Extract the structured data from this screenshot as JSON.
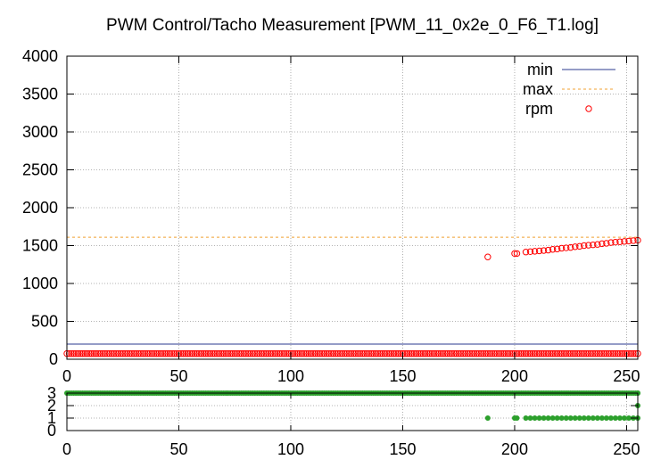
{
  "title": "PWM Control/Tacho Measurement [PWM_11_0x2e_0_F6_T1.log]",
  "colors": {
    "min": "#2b3a8f",
    "max": "#f0a030",
    "rpm": "#ff0000",
    "state": "#2ca02c",
    "grid": "#9a9a9a"
  },
  "chart_data": [
    {
      "type": "scatter",
      "title": "PWM Control/Tacho Measurement [PWM_11_0x2e_0_F6_T1.log]",
      "xlabel": "",
      "ylabel": "",
      "xlim": [
        0,
        255
      ],
      "ylim": [
        0,
        4000
      ],
      "xticks": [
        "0",
        "50",
        "100",
        "150",
        "200",
        "250"
      ],
      "yticks": [
        "0",
        "500",
        "1000",
        "1500",
        "2000",
        "2500",
        "3000",
        "3500",
        "4000"
      ],
      "grid": true,
      "legend_position": "top-right",
      "series": [
        {
          "name": "min",
          "style": "line",
          "color": "#2b3a8f",
          "values": [
            200
          ]
        },
        {
          "name": "max",
          "style": "dashed",
          "color": "#f0a030",
          "values": [
            1610
          ]
        },
        {
          "name": "rpm",
          "style": "circle",
          "color": "#ff0000",
          "low_segment": {
            "x_range": [
              0,
              255
            ],
            "y": 75
          },
          "high_points": [
            [
              188,
              1350
            ],
            [
              200,
              1395
            ],
            [
              201,
              1395
            ],
            [
              205,
              1415
            ],
            [
              207,
              1420
            ],
            [
              209,
              1425
            ],
            [
              211,
              1430
            ],
            [
              213,
              1435
            ],
            [
              215,
              1440
            ],
            [
              217,
              1450
            ],
            [
              219,
              1455
            ],
            [
              221,
              1465
            ],
            [
              223,
              1470
            ],
            [
              225,
              1475
            ],
            [
              227,
              1485
            ],
            [
              229,
              1490
            ],
            [
              231,
              1500
            ],
            [
              233,
              1505
            ],
            [
              235,
              1510
            ],
            [
              237,
              1515
            ],
            [
              239,
              1525
            ],
            [
              241,
              1530
            ],
            [
              243,
              1540
            ],
            [
              245,
              1545
            ],
            [
              247,
              1550
            ],
            [
              249,
              1555
            ],
            [
              251,
              1560
            ],
            [
              253,
              1565
            ],
            [
              255,
              1570
            ]
          ]
        }
      ]
    },
    {
      "type": "scatter",
      "xlim": [
        0,
        255
      ],
      "ylim": [
        0,
        3
      ],
      "xticks": [
        "0",
        "50",
        "100",
        "150",
        "200",
        "250"
      ],
      "yticks": [
        "0",
        "1",
        "2",
        "3"
      ],
      "grid": true,
      "series": [
        {
          "style": "dot",
          "color": "#2ca02c",
          "high_segment": {
            "x_range": [
              0,
              255
            ],
            "y": 3
          },
          "points": [
            [
              188,
              1
            ],
            [
              200,
              1
            ],
            [
              201,
              1
            ],
            [
              205,
              1
            ],
            [
              207,
              1
            ],
            [
              209,
              1
            ],
            [
              211,
              1
            ],
            [
              213,
              1
            ],
            [
              215,
              1
            ],
            [
              217,
              1
            ],
            [
              219,
              1
            ],
            [
              221,
              1
            ],
            [
              223,
              1
            ],
            [
              225,
              1
            ],
            [
              227,
              1
            ],
            [
              229,
              1
            ],
            [
              231,
              1
            ],
            [
              233,
              1
            ],
            [
              235,
              1
            ],
            [
              237,
              1
            ],
            [
              239,
              1
            ],
            [
              241,
              1
            ],
            [
              243,
              1
            ],
            [
              245,
              1
            ],
            [
              247,
              1
            ],
            [
              249,
              1
            ],
            [
              251,
              1
            ],
            [
              253,
              1
            ],
            [
              255,
              1
            ],
            [
              255,
              2
            ],
            [
              255,
              3
            ]
          ]
        }
      ]
    }
  ]
}
